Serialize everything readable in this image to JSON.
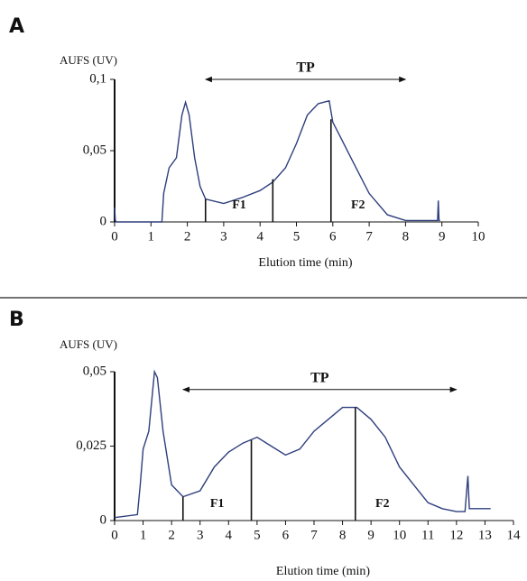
{
  "chart_data": [
    {
      "type": "line",
      "panel_label": "A",
      "y_label": "AUFS (UV)",
      "x_label": "Elution time (min)",
      "x": [
        0,
        0.02,
        0.05,
        1.3,
        1.35,
        1.5,
        1.7,
        1.85,
        1.95,
        2.05,
        2.2,
        2.35,
        2.5,
        3,
        3.5,
        4,
        4.35,
        4.7,
        5,
        5.3,
        5.6,
        5.9,
        6,
        6.2,
        6.5,
        7,
        7.5,
        8,
        8.88,
        8.9,
        8.92,
        8.95
      ],
      "values": [
        0.01,
        0.001,
        0,
        0,
        0.02,
        0.038,
        0.045,
        0.075,
        0.084,
        0.075,
        0.045,
        0.025,
        0.016,
        0.013,
        0.017,
        0.022,
        0.028,
        0.038,
        0.055,
        0.075,
        0.083,
        0.085,
        0.07,
        0.06,
        0.045,
        0.02,
        0.005,
        0.001,
        0.001,
        0.015,
        0.001,
        0.001
      ],
      "color": "#2e3f7c",
      "xlim": [
        0,
        10
      ],
      "xticks": [
        0,
        1,
        2,
        3,
        4,
        5,
        6,
        7,
        8,
        9,
        10
      ],
      "ylim": [
        0,
        0.1
      ],
      "yticks": [
        0,
        {
          "value": 0.05,
          "label": "0,05"
        },
        {
          "value": 0.1,
          "label": "0,1"
        }
      ],
      "tp_label": "TP",
      "tp_range": [
        2.5,
        8
      ],
      "tp_y": 0.1,
      "cuts": [
        {
          "x": 2.5,
          "y": 0.016
        },
        {
          "x": 4.35,
          "y": 0.03
        },
        {
          "x": 5.95,
          "y": 0.072
        }
      ],
      "cut_labels": [
        "F1",
        "F2"
      ]
    },
    {
      "type": "line",
      "panel_label": "B",
      "y_label": "AUFS (UV)",
      "x_label": "Elution time (min)",
      "x": [
        0,
        0.8,
        0.9,
        1.0,
        1.2,
        1.4,
        1.5,
        1.7,
        2,
        2.4,
        3,
        3.5,
        4,
        4.5,
        5,
        5.5,
        6,
        6.5,
        7,
        7.5,
        8,
        8.5,
        9,
        9.5,
        10,
        10.5,
        11,
        11.5,
        12,
        12.3,
        12.4,
        12.45,
        13.2
      ],
      "values": [
        0.001,
        0.002,
        0.012,
        0.024,
        0.03,
        0.05,
        0.048,
        0.03,
        0.012,
        0.008,
        0.01,
        0.018,
        0.023,
        0.026,
        0.028,
        0.025,
        0.022,
        0.024,
        0.03,
        0.034,
        0.038,
        0.038,
        0.034,
        0.028,
        0.018,
        0.012,
        0.006,
        0.004,
        0.003,
        0.003,
        0.015,
        0.004,
        0.004
      ],
      "color": "#2e3f7c",
      "xlim": [
        0,
        14
      ],
      "xticks": [
        0,
        1,
        2,
        3,
        4,
        5,
        6,
        7,
        8,
        9,
        10,
        11,
        12,
        13,
        14
      ],
      "ylim": [
        0,
        0.05
      ],
      "yticks": [
        0,
        {
          "value": 0.025,
          "label": "0,025"
        },
        {
          "value": 0.05,
          "label": "0,05"
        }
      ],
      "tp_label": "TP",
      "tp_range": [
        2.4,
        12
      ],
      "tp_y": 0.044,
      "cuts": [
        {
          "x": 2.4,
          "y": 0.008
        },
        {
          "x": 4.8,
          "y": 0.027
        },
        {
          "x": 8.45,
          "y": 0.038
        }
      ],
      "cut_labels": [
        "F1",
        "F2"
      ]
    }
  ]
}
